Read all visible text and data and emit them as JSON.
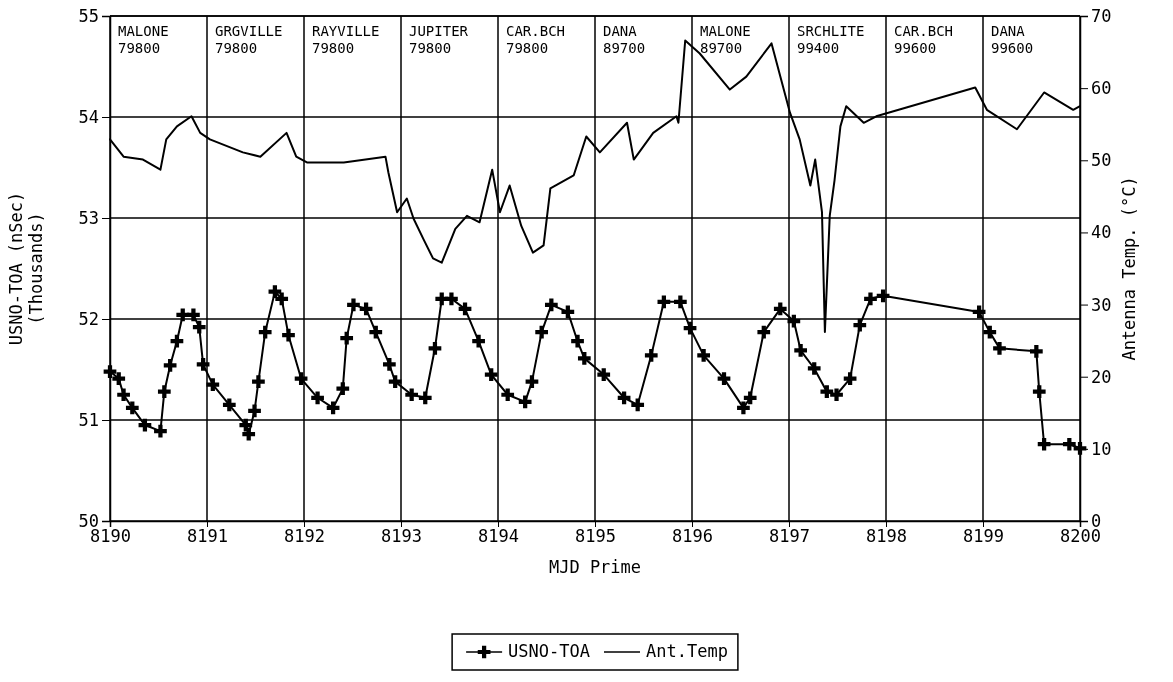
{
  "chart_data": {
    "type": "line",
    "xlabel": "MJD Prime",
    "ylabel": "USNO-TOA (nSec)\n(Thousands)",
    "y2label": "Antenna Temp. (°C)",
    "xlim": [
      8190,
      8200
    ],
    "xticks": [
      8190,
      8191,
      8192,
      8193,
      8194,
      8195,
      8196,
      8197,
      8198,
      8199,
      8200
    ],
    "ylim": [
      50,
      55
    ],
    "yticks": [
      50,
      51,
      52,
      53,
      54,
      55
    ],
    "y2lim": [
      0,
      70
    ],
    "y2ticks": [
      0,
      10,
      20,
      30,
      40,
      50,
      60,
      70
    ],
    "grid": true,
    "legend": "bottom",
    "annotations": [
      "MALONE\n79800",
      "GRGVILLE\n79800",
      "RAYVILLE\n79800",
      "JUPITER\n79800",
      "CAR.BCH\n79800",
      "DANA\n89700",
      "MALONE\n89700",
      "SRCHLITE\n99400",
      "CAR.BCH\n99600",
      "DANA\n99600"
    ],
    "series": [
      {
        "name": "USNO-TOA",
        "color": "#000000",
        "marker": "cross",
        "x": [
          8190.0,
          8190.09,
          8190.14,
          8190.23,
          8190.36,
          8190.52,
          8190.56,
          8190.62,
          8190.69,
          8190.75,
          8190.86,
          8190.92,
          8190.96,
          8191.06,
          8191.23,
          8191.4,
          8191.43,
          8191.49,
          8191.53,
          8191.6,
          8191.7,
          8191.77,
          8191.84,
          8191.97,
          8192.14,
          8192.3,
          8192.4,
          8192.44,
          8192.51,
          8192.64,
          8192.74,
          8192.88,
          8192.94,
          8193.11,
          8193.25,
          8193.35,
          8193.42,
          8193.52,
          8193.66,
          8193.8,
          8193.93,
          8194.1,
          8194.28,
          8194.35,
          8194.45,
          8194.55,
          8194.72,
          8194.82,
          8194.89,
          8195.09,
          8195.3,
          8195.44,
          8195.58,
          8195.71,
          8195.88,
          8195.98,
          8196.12,
          8196.33,
          8196.53,
          8196.6,
          8196.74,
          8196.91,
          8197.05,
          8197.12,
          8197.26,
          8197.39,
          8197.49,
          8197.63,
          8197.73,
          8197.84,
          8197.97,
          8198.96,
          8199.07,
          8199.17,
          8199.55,
          8199.58,
          8199.63,
          8199.89,
          8200.0
        ],
        "values": [
          51.48,
          51.41,
          51.25,
          51.12,
          50.95,
          50.89,
          51.28,
          51.54,
          51.78,
          52.04,
          52.04,
          51.92,
          51.55,
          51.35,
          51.15,
          50.95,
          50.86,
          51.09,
          51.38,
          51.87,
          52.27,
          52.2,
          51.84,
          51.41,
          51.22,
          51.12,
          51.31,
          51.81,
          52.14,
          52.1,
          51.87,
          51.55,
          51.38,
          51.25,
          51.22,
          51.71,
          52.2,
          52.2,
          52.1,
          51.78,
          51.45,
          51.25,
          51.18,
          51.38,
          51.87,
          52.14,
          52.07,
          51.78,
          51.61,
          51.45,
          51.22,
          51.15,
          51.64,
          52.17,
          52.17,
          51.91,
          51.64,
          51.41,
          51.12,
          51.22,
          51.87,
          52.1,
          51.98,
          51.69,
          51.51,
          51.28,
          51.25,
          51.41,
          51.94,
          52.2,
          52.23,
          52.07,
          51.87,
          51.71,
          51.68,
          51.28,
          50.76,
          50.76,
          50.72
        ]
      },
      {
        "name": "Ant.Temp",
        "color": "#000000",
        "axis": "y2",
        "marker": "none",
        "x": [
          8190.0,
          8190.14,
          8190.34,
          8190.52,
          8190.58,
          8190.69,
          8190.84,
          8190.93,
          8191.03,
          8191.37,
          8191.55,
          8191.82,
          8191.92,
          8192.03,
          8192.41,
          8192.84,
          8192.87,
          8192.96,
          8193.06,
          8193.13,
          8193.23,
          8193.33,
          8193.42,
          8193.56,
          8193.68,
          8193.81,
          8193.94,
          8194.02,
          8194.12,
          8194.24,
          8194.36,
          8194.47,
          8194.54,
          8194.78,
          8194.91,
          8195.05,
          8195.33,
          8195.4,
          8195.6,
          8195.84,
          8195.86,
          8195.93,
          8196.08,
          8196.39,
          8196.56,
          8196.82,
          8197.01,
          8197.11,
          8197.22,
          8197.27,
          8197.34,
          8197.37,
          8197.42,
          8197.47,
          8197.53,
          8197.59,
          8197.77,
          8197.9,
          8198.92,
          8199.04,
          8199.35,
          8199.63,
          8199.93,
          8200.0
        ],
        "values": [
          52.9,
          50.5,
          50.1,
          48.7,
          52.9,
          54.7,
          56.1,
          53.8,
          52.9,
          51.1,
          50.5,
          53.8,
          50.5,
          49.7,
          49.7,
          50.5,
          48.3,
          42.8,
          44.7,
          41.9,
          39.1,
          36.4,
          35.8,
          40.5,
          42.3,
          41.4,
          48.7,
          42.8,
          46.5,
          40.9,
          37.2,
          38.2,
          46.1,
          47.9,
          53.3,
          51.1,
          55.2,
          50.1,
          53.8,
          56.1,
          55.2,
          66.6,
          64.8,
          59.8,
          61.6,
          66.2,
          56.6,
          52.9,
          46.5,
          50.1,
          42.8,
          26.2,
          42.3,
          47.3,
          54.7,
          57.5,
          55.2,
          56.1,
          60.1,
          57.0,
          54.3,
          59.4,
          57.0,
          57.5
        ]
      }
    ]
  }
}
